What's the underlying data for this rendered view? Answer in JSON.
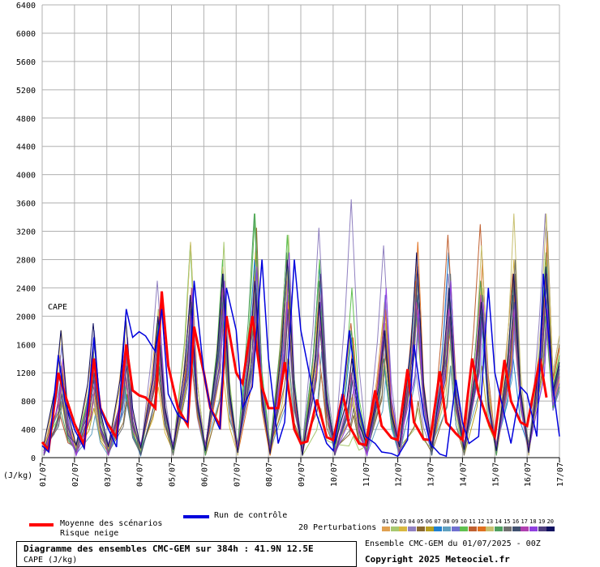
{
  "chart_data": {
    "type": "line",
    "title": "Diagramme des ensembles CMC-GEM sur 384h : 41.9N 12.5E",
    "subtitle": "CAPE (J/kg)",
    "ylabel": "(J/kg)",
    "inner_label": "CAPE",
    "ylim": [
      0,
      6400
    ],
    "yticks": [
      0,
      400,
      800,
      1200,
      1600,
      2000,
      2400,
      2800,
      3200,
      3600,
      4000,
      4400,
      4800,
      5200,
      5600,
      6000,
      6400
    ],
    "x_tick_labels": [
      "01/07",
      "02/07",
      "03/07",
      "04/07",
      "05/07",
      "06/07",
      "07/07",
      "08/07",
      "09/07",
      "10/07",
      "11/07",
      "12/07",
      "13/07",
      "14/07",
      "15/07",
      "16/07",
      "17/07"
    ],
    "x_days": [
      0,
      16
    ],
    "grid": true,
    "mean": {
      "name": "Moyenne des scénarios",
      "color": "#ff0000",
      "points": [
        [
          0.0,
          220
        ],
        [
          0.2,
          110
        ],
        [
          0.5,
          1200
        ],
        [
          0.7,
          900
        ],
        [
          1.0,
          480
        ],
        [
          1.3,
          180
        ],
        [
          1.6,
          1400
        ],
        [
          1.8,
          700
        ],
        [
          2.0,
          500
        ],
        [
          2.3,
          280
        ],
        [
          2.6,
          1600
        ],
        [
          2.8,
          950
        ],
        [
          3.0,
          880
        ],
        [
          3.2,
          850
        ],
        [
          3.5,
          700
        ],
        [
          3.7,
          2350
        ],
        [
          3.9,
          1300
        ],
        [
          4.2,
          700
        ],
        [
          4.5,
          460
        ],
        [
          4.7,
          1850
        ],
        [
          5.0,
          1200
        ],
        [
          5.2,
          700
        ],
        [
          5.5,
          450
        ],
        [
          5.7,
          2000
        ],
        [
          6.0,
          1200
        ],
        [
          6.2,
          1050
        ],
        [
          6.5,
          2000
        ],
        [
          6.8,
          1000
        ],
        [
          7.0,
          700
        ],
        [
          7.3,
          700
        ],
        [
          7.5,
          1350
        ],
        [
          7.8,
          400
        ],
        [
          8.0,
          200
        ],
        [
          8.2,
          230
        ],
        [
          8.5,
          820
        ],
        [
          8.8,
          290
        ],
        [
          9.0,
          250
        ],
        [
          9.3,
          900
        ],
        [
          9.5,
          450
        ],
        [
          9.8,
          200
        ],
        [
          10.0,
          180
        ],
        [
          10.3,
          950
        ],
        [
          10.5,
          450
        ],
        [
          10.8,
          280
        ],
        [
          11.0,
          250
        ],
        [
          11.3,
          1250
        ],
        [
          11.5,
          500
        ],
        [
          11.8,
          260
        ],
        [
          12.0,
          250
        ],
        [
          12.3,
          1220
        ],
        [
          12.5,
          500
        ],
        [
          12.8,
          340
        ],
        [
          13.0,
          250
        ],
        [
          13.3,
          1400
        ],
        [
          13.5,
          900
        ],
        [
          13.8,
          500
        ],
        [
          14.0,
          300
        ],
        [
          14.3,
          1380
        ],
        [
          14.5,
          800
        ],
        [
          14.8,
          500
        ],
        [
          15.0,
          450
        ],
        [
          15.4,
          1400
        ],
        [
          15.6,
          850
        ]
      ]
    },
    "control": {
      "name": "Run de contrôle",
      "color": "#0000dd",
      "points": [
        [
          0.0,
          170
        ],
        [
          0.2,
          80
        ],
        [
          0.5,
          1450
        ],
        [
          0.7,
          800
        ],
        [
          1.0,
          400
        ],
        [
          1.3,
          130
        ],
        [
          1.6,
          1700
        ],
        [
          1.8,
          700
        ],
        [
          2.0,
          450
        ],
        [
          2.3,
          150
        ],
        [
          2.6,
          2100
        ],
        [
          2.8,
          1700
        ],
        [
          3.0,
          1780
        ],
        [
          3.2,
          1720
        ],
        [
          3.5,
          1500
        ],
        [
          3.7,
          2100
        ],
        [
          3.9,
          900
        ],
        [
          4.2,
          600
        ],
        [
          4.5,
          500
        ],
        [
          4.7,
          2500
        ],
        [
          5.0,
          1200
        ],
        [
          5.2,
          700
        ],
        [
          5.5,
          400
        ],
        [
          5.7,
          2400
        ],
        [
          6.0,
          1800
        ],
        [
          6.2,
          700
        ],
        [
          6.5,
          1000
        ],
        [
          6.8,
          2800
        ],
        [
          7.0,
          1400
        ],
        [
          7.3,
          200
        ],
        [
          7.5,
          500
        ],
        [
          7.8,
          2800
        ],
        [
          8.0,
          1800
        ],
        [
          8.3,
          1100
        ],
        [
          8.5,
          600
        ],
        [
          8.8,
          200
        ],
        [
          9.0,
          100
        ],
        [
          9.3,
          900
        ],
        [
          9.5,
          1800
        ],
        [
          9.8,
          700
        ],
        [
          10.0,
          300
        ],
        [
          10.3,
          200
        ],
        [
          10.5,
          80
        ],
        [
          10.8,
          60
        ],
        [
          11.0,
          20
        ],
        [
          11.3,
          250
        ],
        [
          11.5,
          1600
        ],
        [
          11.8,
          600
        ],
        [
          12.0,
          200
        ],
        [
          12.3,
          50
        ],
        [
          12.5,
          20
        ],
        [
          12.8,
          1100
        ],
        [
          13.0,
          500
        ],
        [
          13.2,
          200
        ],
        [
          13.5,
          300
        ],
        [
          13.8,
          2400
        ],
        [
          14.0,
          1200
        ],
        [
          14.3,
          600
        ],
        [
          14.5,
          200
        ],
        [
          14.8,
          1000
        ],
        [
          15.0,
          900
        ],
        [
          15.3,
          300
        ],
        [
          15.5,
          2600
        ],
        [
          15.8,
          1000
        ],
        [
          16.0,
          300
        ]
      ]
    },
    "perturbations": {
      "label": "20 Perturbations",
      "numbers": [
        "01",
        "02",
        "03",
        "04",
        "05",
        "06",
        "07",
        "08",
        "09",
        "10",
        "11",
        "12",
        "13",
        "14",
        "15",
        "16",
        "17",
        "18",
        "19",
        "20"
      ],
      "colors": [
        "#e0a050",
        "#a8c870",
        "#d8b840",
        "#9080c0",
        "#8b6a30",
        "#b8a020",
        "#2080d0",
        "#60a0c0",
        "#7070d0",
        "#60c050",
        "#c06030",
        "#e07020",
        "#c8c070",
        "#50a060",
        "#707070",
        "#405070",
        "#b040b0",
        "#9040e0",
        "#504080",
        "#101060"
      ],
      "peak_values": [
        [
          1450,
          1500,
          1700,
          1900,
          2000,
          2300,
          2200,
          2800,
          2200,
          850,
          2000,
          2100,
          2100,
          2300,
          2200,
          2100
        ],
        [
          1000,
          1300,
          1500,
          1800,
          2200,
          3050,
          2700,
          3150,
          700,
          300,
          1900,
          700,
          1600,
          2400,
          2100,
          2800
        ],
        [
          1800,
          800,
          1900,
          1000,
          3050,
          1200,
          2600,
          1400,
          1850,
          800,
          2200,
          2000,
          2300,
          2500,
          2800,
          2200
        ],
        [
          600,
          900,
          1000,
          2500,
          1600,
          1900,
          2300,
          2100,
          3250,
          3650,
          3000,
          1200,
          2600,
          2100,
          2000,
          3450
        ],
        [
          1200,
          1000,
          900,
          1300,
          2100,
          1500,
          3250,
          1400,
          1200,
          600,
          1500,
          800,
          1300,
          2200,
          2600,
          3200
        ],
        [
          800,
          700,
          1100,
          2000,
          1800,
          2400,
          2900,
          2300,
          2600,
          900,
          2200,
          2400,
          2300,
          1300,
          1900,
          2000
        ],
        [
          1300,
          1200,
          900,
          1700,
          1900,
          2200,
          2800,
          2400,
          2700,
          1700,
          1300,
          2600,
          2900,
          2000,
          1400,
          2600
        ],
        [
          900,
          600,
          1200,
          1900,
          2300,
          1600,
          2500,
          1300,
          1500,
          1500,
          1200,
          1900,
          1300,
          1700,
          2000,
          2100
        ],
        [
          1600,
          1800,
          1100,
          2100,
          2000,
          2600,
          2000,
          2700,
          2200,
          1100,
          2300,
          2700,
          2100,
          2200,
          2400,
          1900
        ],
        [
          1000,
          1500,
          1400,
          1900,
          3000,
          2800,
          3450,
          3150,
          2800,
          2400,
          1700,
          2400,
          2100,
          2200,
          2500,
          2900
        ],
        [
          600,
          1100,
          1200,
          1300,
          1700,
          2100,
          2300,
          2500,
          1500,
          1900,
          1800,
          2500,
          3150,
          3300,
          2600,
          2300
        ],
        [
          1300,
          1000,
          1400,
          1800,
          2400,
          2100,
          1900,
          2200,
          2000,
          1700,
          2100,
          3050,
          1900,
          2800,
          2300,
          3100
        ],
        [
          1100,
          900,
          1300,
          2100,
          3050,
          2700,
          2500,
          2600,
          2100,
          800,
          1400,
          2000,
          2200,
          3000,
          3450,
          3450
        ],
        [
          700,
          1300,
          1000,
          1600,
          2100,
          2200,
          3450,
          2900,
          2500,
          1800,
          1400,
          2100,
          2000,
          2500,
          2300,
          2000
        ],
        [
          800,
          1700,
          800,
          1500,
          1900,
          2200,
          2300,
          1900,
          2300,
          700,
          1600,
          2600,
          2600,
          2300,
          2800,
          2400
        ],
        [
          1200,
          1100,
          1500,
          1300,
          2000,
          2600,
          2200,
          2100,
          1800,
          1100,
          1700,
          2300,
          2400,
          2100,
          2200,
          2500
        ],
        [
          1000,
          1300,
          1200,
          1700,
          2200,
          2400,
          2500,
          2200,
          2100,
          1200,
          1900,
          2200,
          2100,
          2300,
          2100,
          2300
        ],
        [
          1400,
          1100,
          1700,
          2000,
          2400,
          2500,
          2700,
          2900,
          2400,
          1000,
          2400,
          2100,
          2500,
          2200,
          2300,
          2100
        ],
        [
          900,
          1200,
          1300,
          1800,
          2200,
          2300,
          2400,
          2100,
          2600,
          1300,
          1800,
          2700,
          2000,
          2100,
          2500,
          2600
        ],
        [
          1800,
          1900,
          2000,
          2000,
          2300,
          2600,
          2500,
          2800,
          2200,
          1400,
          1800,
          2900,
          2400,
          2200,
          2600,
          2700
        ]
      ]
    }
  },
  "legend": {
    "mean_label": "Moyenne des scénarios",
    "snow_label": "Risque neige",
    "control_label": "Run de contrôle"
  },
  "footer": {
    "ensemble_info": "Ensemble CMC-GEM du 01/07/2025 - 00Z",
    "copyright": "Copyright 2025 Meteociel.fr"
  }
}
